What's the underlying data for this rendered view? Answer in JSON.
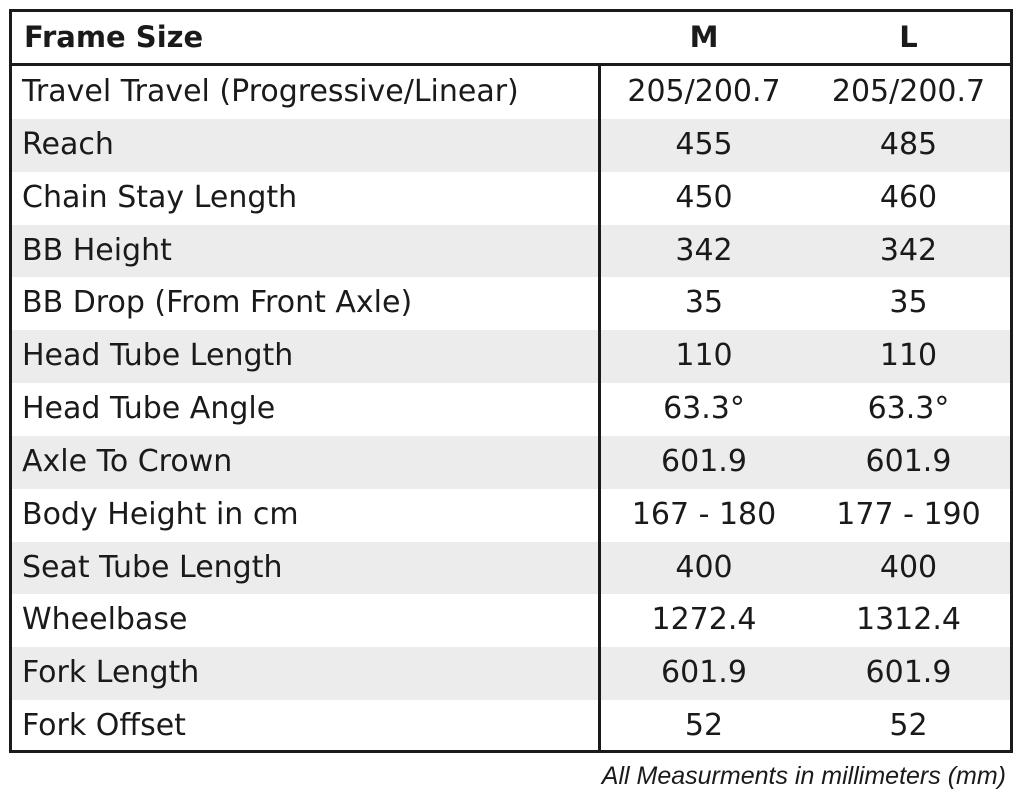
{
  "table": {
    "header": {
      "label": "Frame Size",
      "col_m": "M",
      "col_l": "L"
    },
    "rows": [
      {
        "label": "Travel Travel (Progressive/Linear)",
        "m": "205/200.7",
        "l": "205/200.7"
      },
      {
        "label": "Reach",
        "m": "455",
        "l": "485"
      },
      {
        "label": "Chain Stay Length",
        "m": "450",
        "l": "460"
      },
      {
        "label": "BB Height",
        "m": "342",
        "l": "342"
      },
      {
        "label": "BB Drop (From Front Axle)",
        "m": "35",
        "l": "35"
      },
      {
        "label": "Head Tube Length",
        "m": "110",
        "l": "110"
      },
      {
        "label": "Head Tube Angle",
        "m": "63.3°",
        "l": "63.3°"
      },
      {
        "label": "Axle To Crown",
        "m": "601.9",
        "l": "601.9"
      },
      {
        "label": "Body Height in cm",
        "m": "167 - 180",
        "l": "177 - 190"
      },
      {
        "label": "Seat Tube Length",
        "m": "400",
        "l": "400"
      },
      {
        "label": "Wheelbase",
        "m": "1272.4",
        "l": "1312.4"
      },
      {
        "label": "Fork Length",
        "m": "601.9",
        "l": "601.9"
      },
      {
        "label": "Fork Offset",
        "m": "52",
        "l": "52"
      }
    ]
  },
  "footnote": "All Measurments in millimeters (mm)",
  "colors": {
    "border": "#1a1a1a",
    "row_alt": "#ececec",
    "background": "#ffffff"
  }
}
